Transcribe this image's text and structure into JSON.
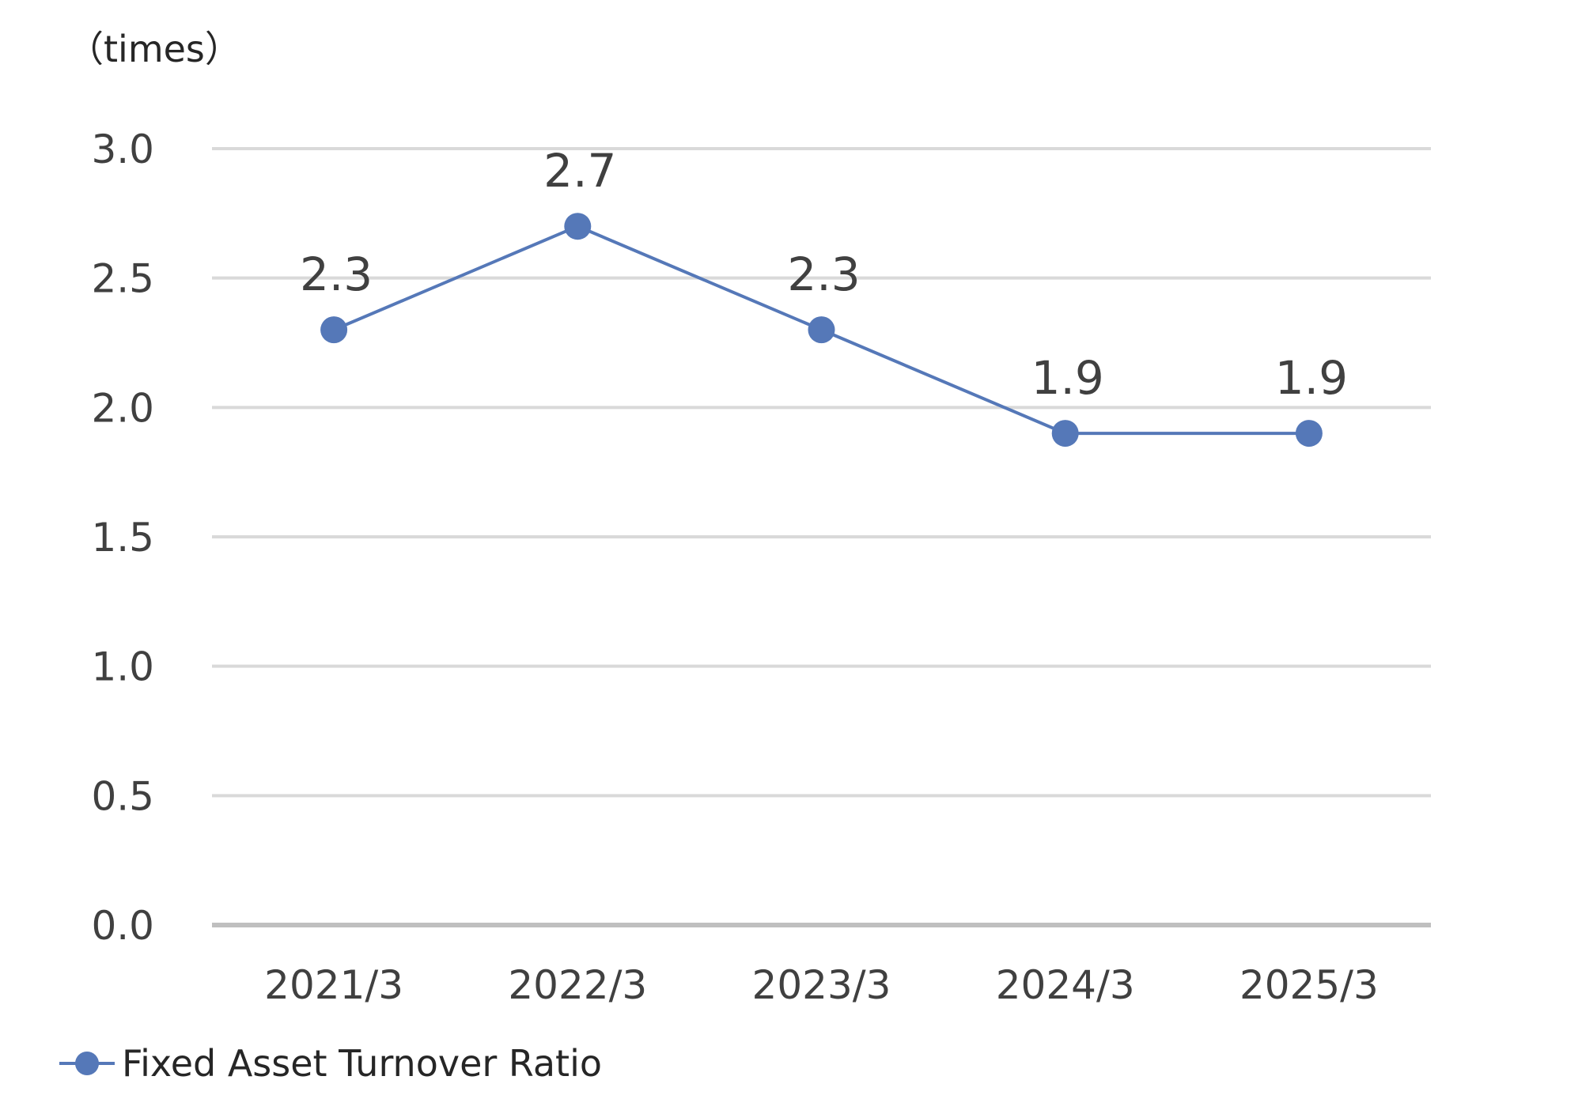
{
  "chart_data": {
    "type": "line",
    "unit_label": "（times）",
    "categories": [
      "2021/3",
      "2022/3",
      "2023/3",
      "2024/3",
      "2025/3"
    ],
    "series": [
      {
        "name": "Fixed Asset Turnover Ratio",
        "values": [
          2.3,
          2.7,
          2.3,
          1.9,
          1.9
        ],
        "color": "#5578B8"
      }
    ],
    "data_labels": [
      "2.3",
      "2.7",
      "2.3",
      "1.9",
      "1.9"
    ],
    "ylim": [
      0,
      3.0
    ],
    "y_ticks": [
      "0.0",
      "0.5",
      "1.0",
      "1.5",
      "2.0",
      "2.5",
      "3.0"
    ],
    "gridlines": true,
    "gridline_color": "#D9D9D9",
    "axis_color": "#BFBFBF",
    "legend_position": "bottom-left"
  }
}
